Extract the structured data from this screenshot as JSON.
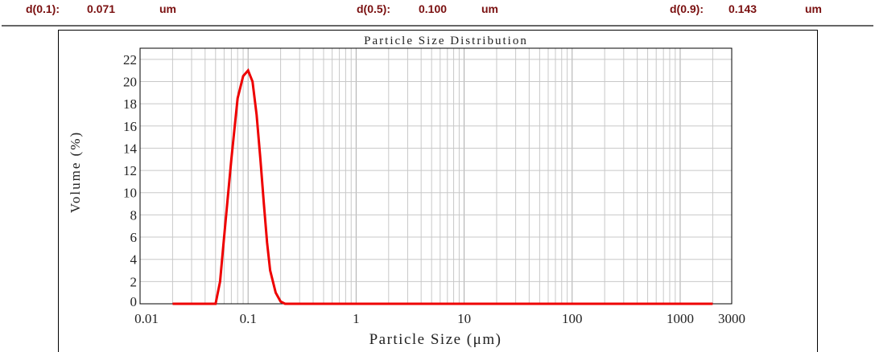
{
  "stats": [
    {
      "label": "d(0.1):",
      "value": "0.071",
      "unit": "um"
    },
    {
      "label": "d(0.5):",
      "value": "0.100",
      "unit": "um"
    },
    {
      "label": "d(0.9):",
      "value": "0.143",
      "unit": "um"
    }
  ],
  "chart_data": {
    "type": "line",
    "title": "Particle Size Distribution",
    "xlabel": "Particle Size (μm)",
    "ylabel": "Volume (%)",
    "xscale": "log",
    "xlim": [
      0.01,
      3000
    ],
    "ylim": [
      0,
      23
    ],
    "xticks": [
      "0.01",
      "0.1",
      "1",
      "10",
      "100",
      "1000",
      "3000"
    ],
    "yticks": [
      "0",
      "2",
      "4",
      "6",
      "8",
      "10",
      "12",
      "14",
      "16",
      "18",
      "20",
      "22"
    ],
    "grid": true,
    "series": [
      {
        "color": "#ee0000",
        "x": [
          0.02,
          0.05,
          0.055,
          0.06,
          0.07,
          0.08,
          0.09,
          0.1,
          0.11,
          0.12,
          0.13,
          0.14,
          0.15,
          0.16,
          0.18,
          0.2,
          0.22,
          2000
        ],
        "y": [
          0,
          0,
          2,
          6,
          13,
          18.5,
          20.5,
          21,
          20,
          17,
          13,
          9,
          5.5,
          3,
          1,
          0.2,
          0,
          0
        ]
      }
    ]
  }
}
